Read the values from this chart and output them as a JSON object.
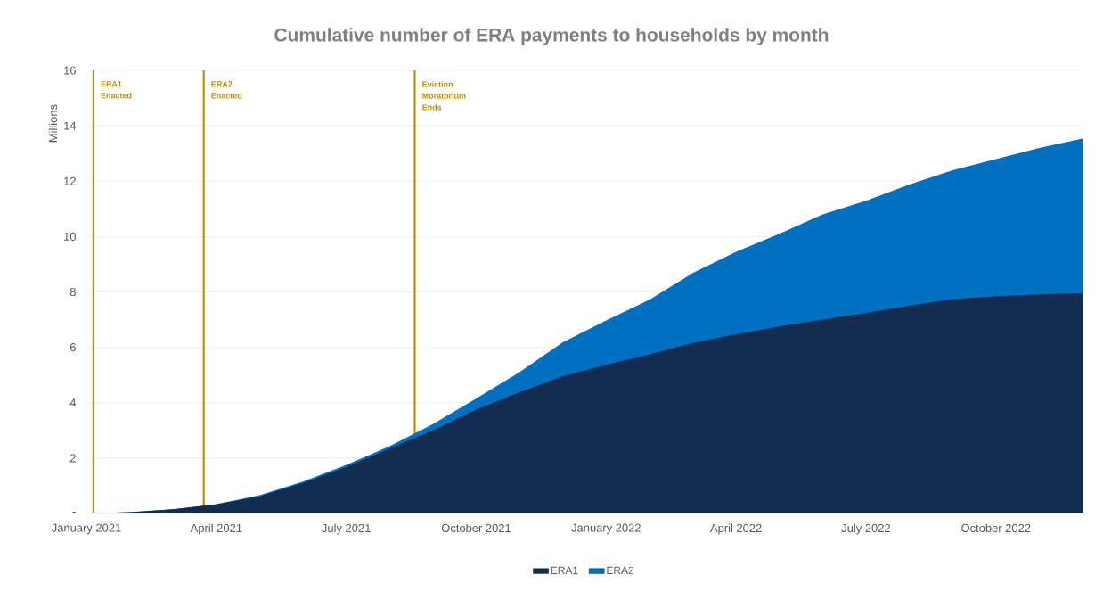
{
  "chart_data": {
    "type": "area",
    "stacked": true,
    "title": "Cumulative number of ERA payments to households by month",
    "ylabel": "Millions",
    "x": [
      "2021-01",
      "2021-02",
      "2021-03",
      "2021-04",
      "2021-05",
      "2021-06",
      "2021-07",
      "2021-08",
      "2021-09",
      "2021-10",
      "2021-11",
      "2021-12",
      "2022-01",
      "2022-02",
      "2022-03",
      "2022-04",
      "2022-05",
      "2022-06",
      "2022-07",
      "2022-08",
      "2022-09",
      "2022-10",
      "2022-11",
      "2022-12"
    ],
    "series": [
      {
        "name": "ERA1",
        "color": "#132c50",
        "values": [
          0,
          0.05,
          0.15,
          0.33,
          0.62,
          1.1,
          1.68,
          2.34,
          3.0,
          3.75,
          4.38,
          4.96,
          5.37,
          5.75,
          6.16,
          6.47,
          6.75,
          7.0,
          7.24,
          7.5,
          7.74,
          7.84,
          7.91,
          7.96
        ]
      },
      {
        "name": "ERA2",
        "color": "#0070c0",
        "values": [
          0,
          0,
          0,
          0.01,
          0.04,
          0.05,
          0.07,
          0.09,
          0.23,
          0.4,
          0.72,
          1.22,
          1.6,
          1.97,
          2.52,
          2.98,
          3.35,
          3.8,
          4.05,
          4.38,
          4.65,
          4.96,
          5.29,
          5.58
        ]
      }
    ],
    "xlim": [
      "2021-01",
      "2022-12"
    ],
    "xticks": [
      {
        "value": "2021-01",
        "label": "January 2021"
      },
      {
        "value": "2021-02",
        "label": null
      },
      {
        "value": "2021-03",
        "label": null
      },
      {
        "value": "2021-04",
        "label": "April 2021"
      },
      {
        "value": "2021-05",
        "label": null
      },
      {
        "value": "2021-06",
        "label": null
      },
      {
        "value": "2021-07",
        "label": "July 2021"
      },
      {
        "value": "2021-08",
        "label": null
      },
      {
        "value": "2021-09",
        "label": null
      },
      {
        "value": "2021-10",
        "label": "October 2021"
      },
      {
        "value": "2021-11",
        "label": null
      },
      {
        "value": "2021-12",
        "label": null
      },
      {
        "value": "2022-01",
        "label": "January 2022"
      },
      {
        "value": "2022-02",
        "label": null
      },
      {
        "value": "2022-03",
        "label": null
      },
      {
        "value": "2022-04",
        "label": "April 2022"
      },
      {
        "value": "2022-05",
        "label": null
      },
      {
        "value": "2022-06",
        "label": null
      },
      {
        "value": "2022-07",
        "label": "July 2022"
      },
      {
        "value": "2022-08",
        "label": null
      },
      {
        "value": "2022-09",
        "label": null
      },
      {
        "value": "2022-10",
        "label": "October 2022"
      },
      {
        "value": "2022-11",
        "label": null
      },
      {
        "value": "2022-12",
        "label": null
      }
    ],
    "ylim": [
      0,
      16
    ],
    "yticks": [
      {
        "value": 0,
        "label": "-"
      },
      2,
      4,
      6,
      8,
      10,
      12,
      14,
      16
    ],
    "grid": "y",
    "legend": "bottom",
    "ref_lines": [
      {
        "axis": "x",
        "value": "2021-01-06",
        "label": "ERA1 Enacted",
        "color": "#bf9000"
      },
      {
        "axis": "x",
        "value": "2021-03-23",
        "label": "ERA2 Enacted",
        "color": "#bf9000"
      },
      {
        "axis": "x",
        "value": "2021-08-19",
        "label": "Eviction Moratorium Ends",
        "color": "#bf9000"
      }
    ]
  }
}
